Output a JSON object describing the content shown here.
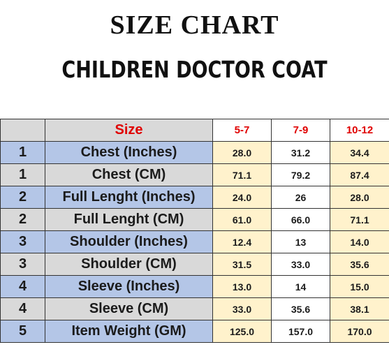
{
  "title": "SIZE CHART",
  "subtitle": "CHILDREN DOCTOR COAT",
  "table": {
    "header_label": "Size",
    "columns": [
      "5-7",
      "7-9",
      "10-12"
    ],
    "rows": [
      {
        "num": "1",
        "label": "Chest (Inches)",
        "values": [
          "28.0",
          "31.2",
          "34.4"
        ]
      },
      {
        "num": "1",
        "label": "Chest (CM)",
        "values": [
          "71.1",
          "79.2",
          "87.4"
        ]
      },
      {
        "num": "2",
        "label": "Full Lenght  (Inches)",
        "values": [
          "24.0",
          "26",
          "28.0"
        ]
      },
      {
        "num": "2",
        "label": "Full Lenght (CM)",
        "values": [
          "61.0",
          "66.0",
          "71.1"
        ]
      },
      {
        "num": "3",
        "label": "Shoulder (Inches)",
        "values": [
          "12.4",
          "13",
          "14.0"
        ]
      },
      {
        "num": "3",
        "label": "Shoulder (CM)",
        "values": [
          "31.5",
          "33.0",
          "35.6"
        ]
      },
      {
        "num": "4",
        "label": "Sleeve (Inches)",
        "values": [
          "13.0",
          "14",
          "15.0"
        ]
      },
      {
        "num": "4",
        "label": "Sleeve (CM)",
        "values": [
          "33.0",
          "35.6",
          "38.1"
        ]
      },
      {
        "num": "5",
        "label": "Item Weight (GM)",
        "values": [
          "125.0",
          "157.0",
          "170.0"
        ]
      }
    ]
  },
  "colors": {
    "header_red": "#e00000",
    "row_blue": "#b4c6e7",
    "row_gray": "#d9d9d9",
    "value_yellow": "#fff2cc"
  }
}
